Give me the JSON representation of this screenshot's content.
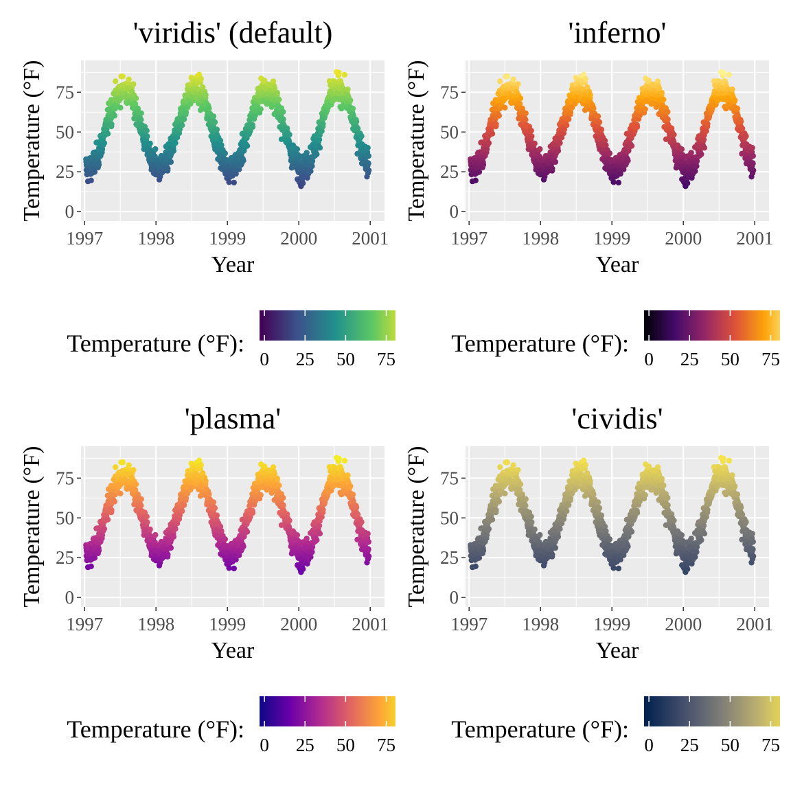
{
  "chart_data": [
    {
      "type": "scatter",
      "title": "'viridis' (default)",
      "xlabel": "Year",
      "ylabel": "Temperature (°F)",
      "x_ticks": [
        "1997",
        "1998",
        "1999",
        "2000",
        "2001"
      ],
      "y_ticks": [
        "0",
        "25",
        "50",
        "75"
      ],
      "xlim": [
        1996.95,
        2001.2
      ],
      "ylim": [
        -6,
        95
      ],
      "grid": true,
      "legend": {
        "placement": "bottom",
        "title": "Temperature (°F):",
        "ticks": [
          "0",
          "25",
          "50",
          "75"
        ],
        "range": [
          -3,
          90
        ],
        "colors": [
          "#440154",
          "#3b528b",
          "#21908c",
          "#5dc863",
          "#fde725"
        ]
      },
      "series_description": "Daily temperature points 1997–2000, seasonal cycle: lows ≈ 0–30 each January, highs ≈ 70–90 each July"
    },
    {
      "type": "scatter",
      "title": "'inferno'",
      "xlabel": "Year",
      "ylabel": "Temperature (°F)",
      "x_ticks": [
        "1997",
        "1998",
        "1999",
        "2000",
        "2001"
      ],
      "y_ticks": [
        "0",
        "25",
        "50",
        "75"
      ],
      "xlim": [
        1996.95,
        2001.2
      ],
      "ylim": [
        -6,
        95
      ],
      "grid": true,
      "legend": {
        "placement": "bottom",
        "title": "Temperature (°F):",
        "ticks": [
          "0",
          "25",
          "50",
          "75"
        ],
        "range": [
          -3,
          90
        ],
        "colors": [
          "#000004",
          "#420a68",
          "#932667",
          "#dd513a",
          "#fca50a",
          "#fcffa4"
        ]
      }
    },
    {
      "type": "scatter",
      "title": "'plasma'",
      "xlabel": "Year",
      "ylabel": "Temperature (°F)",
      "x_ticks": [
        "1997",
        "1998",
        "1999",
        "2000",
        "2001"
      ],
      "y_ticks": [
        "0",
        "25",
        "50",
        "75"
      ],
      "xlim": [
        1996.95,
        2001.2
      ],
      "ylim": [
        -6,
        95
      ],
      "grid": true,
      "legend": {
        "placement": "bottom",
        "title": "Temperature (°F):",
        "ticks": [
          "0",
          "25",
          "50",
          "75"
        ],
        "range": [
          -3,
          90
        ],
        "colors": [
          "#0d0887",
          "#6a00a8",
          "#b12a90",
          "#e16462",
          "#fca636",
          "#f0f921"
        ]
      }
    },
    {
      "type": "scatter",
      "title": "'cividis'",
      "xlabel": "Year",
      "ylabel": "Temperature (°F)",
      "x_ticks": [
        "1997",
        "1998",
        "1999",
        "2000",
        "2001"
      ],
      "y_ticks": [
        "0",
        "25",
        "50",
        "75"
      ],
      "xlim": [
        1996.95,
        2001.2
      ],
      "ylim": [
        -6,
        95
      ],
      "grid": true,
      "legend": {
        "placement": "bottom",
        "title": "Temperature (°F):",
        "ticks": [
          "0",
          "25",
          "50",
          "75"
        ],
        "range": [
          -3,
          90
        ],
        "colors": [
          "#00204d",
          "#414d6b",
          "#7c7b78",
          "#bcaf6f",
          "#ffea46"
        ]
      }
    }
  ],
  "style": {
    "panel_background": "#ebebeb",
    "grid_color": "#ffffff",
    "tick_label_color": "#4d4d4d"
  }
}
